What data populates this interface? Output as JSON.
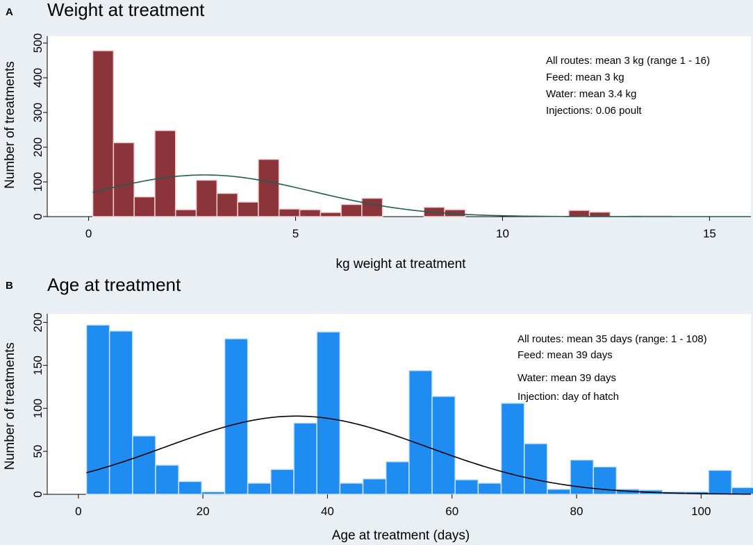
{
  "chart_data": [
    {
      "panel": "A",
      "type": "bar",
      "title": "Weight at treatment",
      "xlabel": "kg weight at treatment",
      "ylabel": "Number of treatments",
      "xlim": [
        -1,
        16
      ],
      "ylim": [
        0,
        520
      ],
      "xticks": [
        0,
        5,
        10,
        15
      ],
      "yticks": [
        0,
        100,
        200,
        300,
        400,
        500
      ],
      "bin_width": 0.5,
      "bar_color": "#8b343a",
      "bar_edge": "#f2cfd3",
      "curve_color": "#1f5d52",
      "bars": [
        {
          "x0": 0.1,
          "value": 478
        },
        {
          "x0": 0.6,
          "value": 213
        },
        {
          "x0": 1.1,
          "value": 57
        },
        {
          "x0": 1.6,
          "value": 248
        },
        {
          "x0": 2.1,
          "value": 20
        },
        {
          "x0": 2.6,
          "value": 105
        },
        {
          "x0": 3.1,
          "value": 67
        },
        {
          "x0": 3.6,
          "value": 42
        },
        {
          "x0": 4.1,
          "value": 165
        },
        {
          "x0": 4.6,
          "value": 22
        },
        {
          "x0": 5.1,
          "value": 20
        },
        {
          "x0": 5.6,
          "value": 12
        },
        {
          "x0": 6.1,
          "value": 35
        },
        {
          "x0": 6.6,
          "value": 53
        },
        {
          "x0": 8.1,
          "value": 27
        },
        {
          "x0": 8.6,
          "value": 20
        },
        {
          "x0": 11.6,
          "value": 18
        },
        {
          "x0": 12.1,
          "value": 13
        },
        {
          "x0": 13.1,
          "value": 2
        },
        {
          "x0": 13.6,
          "value": 2
        }
      ],
      "curve": {
        "mean": 2.8,
        "sd": 2.6,
        "peak": 120
      },
      "annotations": [
        "All routes: mean 3 kg (range 1 - 16)",
        "Feed: mean 3 kg",
        "Water: mean 3.4 kg",
        "Injections: 0.06 poult"
      ]
    },
    {
      "panel": "B",
      "type": "bar",
      "title": "Age at treatment",
      "xlabel": "Age at treatment (days)",
      "ylabel": "Number of treatments",
      "xlim": [
        -5,
        108
      ],
      "ylim": [
        0,
        210
      ],
      "xticks": [
        0,
        20,
        40,
        60,
        80,
        100
      ],
      "yticks": [
        0,
        50,
        100,
        150,
        200
      ],
      "bin_width": 3.7,
      "bar_color": "#1e8cf0",
      "bar_edge": "#cfe4f6",
      "curve_color": "#000000",
      "bars": [
        {
          "x0": 1.3,
          "value": 197
        },
        {
          "x0": 5.0,
          "value": 190
        },
        {
          "x0": 8.7,
          "value": 68
        },
        {
          "x0": 12.4,
          "value": 34
        },
        {
          "x0": 16.1,
          "value": 15
        },
        {
          "x0": 19.8,
          "value": 3
        },
        {
          "x0": 23.5,
          "value": 181
        },
        {
          "x0": 27.2,
          "value": 13
        },
        {
          "x0": 30.9,
          "value": 29
        },
        {
          "x0": 34.6,
          "value": 83
        },
        {
          "x0": 38.3,
          "value": 189
        },
        {
          "x0": 42.0,
          "value": 13
        },
        {
          "x0": 45.7,
          "value": 18
        },
        {
          "x0": 49.4,
          "value": 38
        },
        {
          "x0": 53.1,
          "value": 144
        },
        {
          "x0": 56.8,
          "value": 114
        },
        {
          "x0": 60.5,
          "value": 17
        },
        {
          "x0": 64.2,
          "value": 13
        },
        {
          "x0": 67.9,
          "value": 106
        },
        {
          "x0": 71.6,
          "value": 59
        },
        {
          "x0": 75.3,
          "value": 6
        },
        {
          "x0": 79.0,
          "value": 40
        },
        {
          "x0": 82.7,
          "value": 32
        },
        {
          "x0": 86.4,
          "value": 6
        },
        {
          "x0": 90.1,
          "value": 5
        },
        {
          "x0": 93.8,
          "value": 3
        },
        {
          "x0": 97.5,
          "value": 3
        },
        {
          "x0": 101.2,
          "value": 28
        },
        {
          "x0": 104.9,
          "value": 8
        }
      ],
      "curve": {
        "mean": 35,
        "sd": 21,
        "peak": 91
      },
      "annotations": [
        "All routes: mean 35 days (range: 1 - 108)",
        "Feed: mean 39 days",
        "Water: mean 39 days",
        "Injection: day of hatch"
      ]
    }
  ]
}
